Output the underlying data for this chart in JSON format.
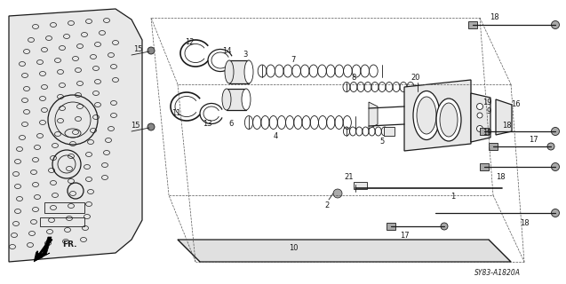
{
  "diagram_id": "SY83-A1820A",
  "background": "#ffffff",
  "lc": "#1a1a1a",
  "gray_fill": "#c8c8c8",
  "light_gray": "#e8e8e8",
  "mid_gray": "#aaaaaa"
}
